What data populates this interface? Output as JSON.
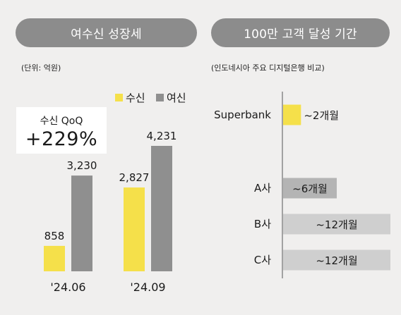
{
  "left_title": "여수신 성장세",
  "right_title": "100만 고객 달성 기간",
  "unit_note": "(단위: 억원)",
  "comparison_note": "(인도네시아 주요 디지털은행 비교)",
  "qoq": {
    "label": "수신 QoQ",
    "value": "+229%"
  },
  "colors": {
    "deposit": "#f5e04a",
    "loan": "#8f8f8f",
    "axis": "#555555",
    "bar_light": "#cfcfcf",
    "bar_dark": "#b4b4b4"
  },
  "chart_data": [
    {
      "type": "bar",
      "categories": [
        "'24.06",
        "'24.09"
      ],
      "series": [
        {
          "name": "수신",
          "values": [
            858,
            2827
          ],
          "labels": [
            "858",
            "2,827"
          ]
        },
        {
          "name": "여신",
          "values": [
            3230,
            4231
          ],
          "labels": [
            "3,230",
            "4,231"
          ]
        }
      ],
      "ylim": [
        0,
        4700
      ],
      "legend": "top-right",
      "grid": false
    },
    {
      "type": "bar",
      "orientation": "horizontal",
      "categories": [
        "Superbank",
        "A사",
        "B사",
        "C사"
      ],
      "values": [
        2,
        6,
        12,
        12
      ],
      "labels": [
        "~2개월",
        "~6개월",
        "~12개월",
        "~12개월"
      ],
      "unit": "개월",
      "xlim": [
        0,
        12
      ]
    }
  ]
}
